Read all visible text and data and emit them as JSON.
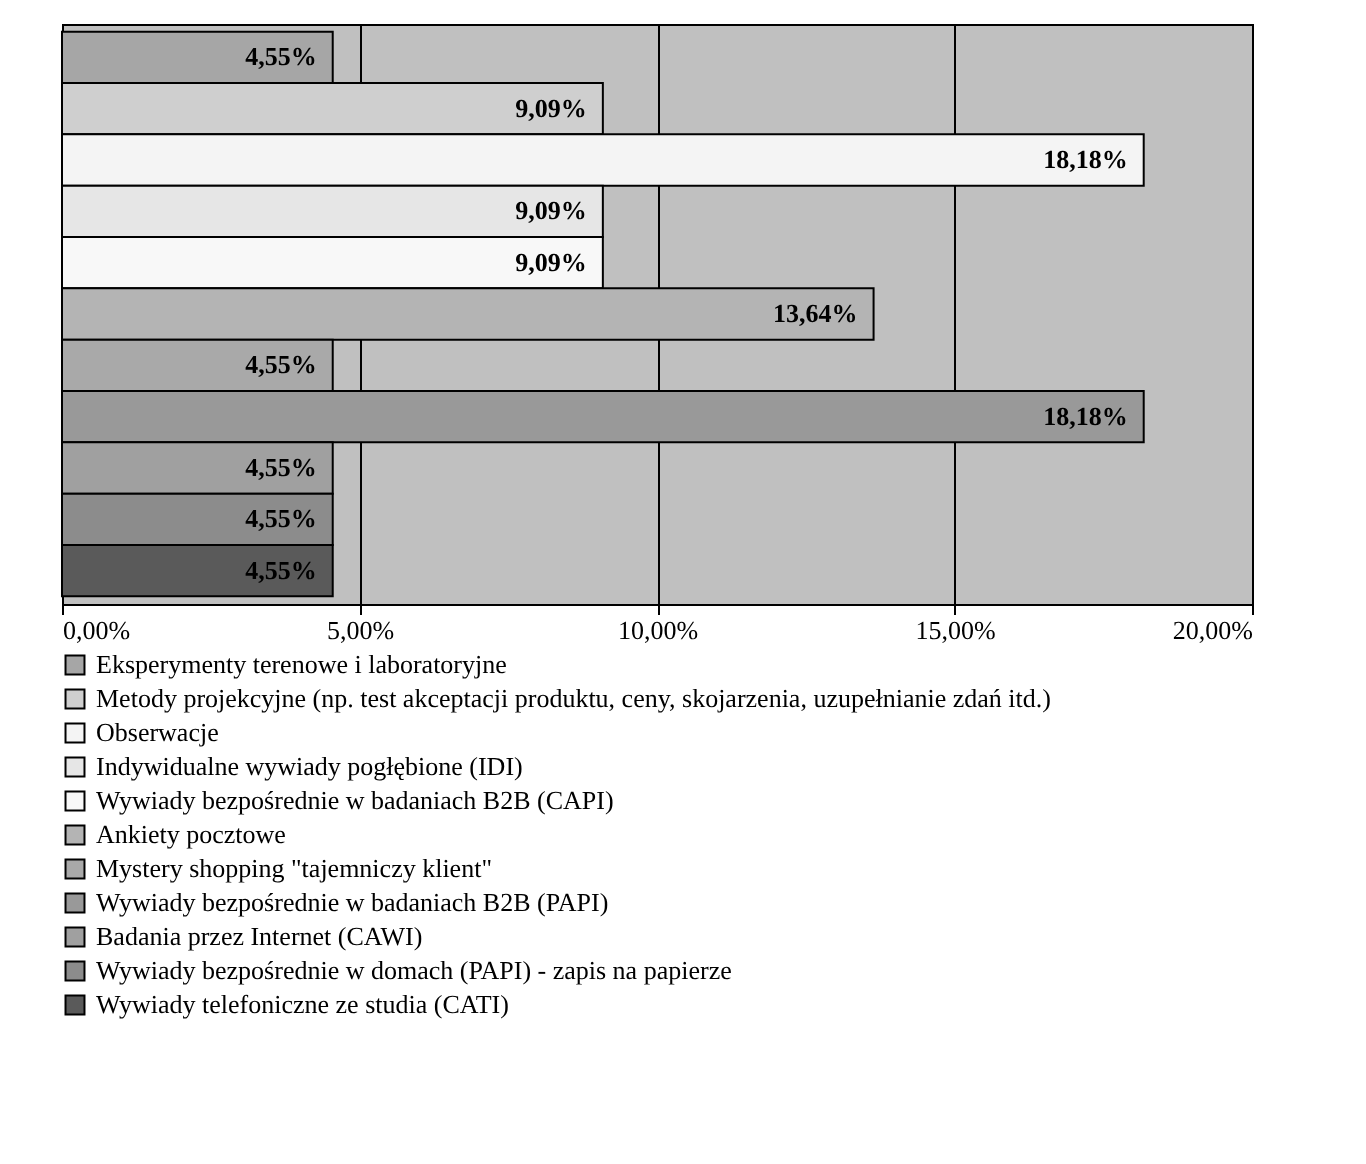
{
  "chart_data": {
    "type": "bar",
    "orientation": "horizontal",
    "categories": [
      null,
      null,
      null,
      null,
      null,
      null,
      null,
      null,
      null,
      null,
      null
    ],
    "series": [
      {
        "name": "Eksperymenty terenowe i laboratoryjne",
        "color": "#a6a6a6",
        "values": [
          4.55,
          null,
          null,
          null,
          null,
          null,
          null,
          null,
          null,
          null,
          null
        ],
        "value_labels": [
          "4,55%",
          null,
          null,
          null,
          null,
          null,
          null,
          null,
          null,
          null,
          null
        ]
      },
      {
        "name": "Metody projekcyjne (np. test akceptacji produktu, ceny, skojarzenia, uzupełnianie zdań itd.)",
        "color": "#cfcfcf",
        "values": [
          null,
          9.09,
          null,
          null,
          null,
          null,
          null,
          null,
          null,
          null,
          null
        ],
        "value_labels": [
          null,
          "9,09%",
          null,
          null,
          null,
          null,
          null,
          null,
          null,
          null,
          null
        ]
      },
      {
        "name": "Obserwacje",
        "color": "#f4f4f4",
        "values": [
          null,
          null,
          18.18,
          null,
          null,
          null,
          null,
          null,
          null,
          null,
          null
        ],
        "value_labels": [
          null,
          null,
          "18,18%",
          null,
          null,
          null,
          null,
          null,
          null,
          null,
          null
        ]
      },
      {
        "name": "Indywidualne wywiady pogłębione (IDI)",
        "color": "#e6e6e6",
        "values": [
          null,
          null,
          null,
          9.09,
          null,
          null,
          null,
          null,
          null,
          null,
          null
        ],
        "value_labels": [
          null,
          null,
          null,
          "9,09%",
          null,
          null,
          null,
          null,
          null,
          null,
          null
        ]
      },
      {
        "name": "Wywiady bezpośrednie w badaniach B2B (CAPI)",
        "color": "#f8f8f8",
        "values": [
          null,
          null,
          null,
          null,
          9.09,
          null,
          null,
          null,
          null,
          null,
          null
        ],
        "value_labels": [
          null,
          null,
          null,
          null,
          "9,09%",
          null,
          null,
          null,
          null,
          null,
          null
        ]
      },
      {
        "name": "Ankiety pocztowe",
        "color": "#b4b4b4",
        "values": [
          null,
          null,
          null,
          null,
          null,
          13.64,
          null,
          null,
          null,
          null,
          null
        ],
        "value_labels": [
          null,
          null,
          null,
          null,
          null,
          "13,64%",
          null,
          null,
          null,
          null,
          null
        ]
      },
      {
        "name": "Mystery shopping \"tajemniczy klient\"",
        "color": "#a9a9a9",
        "values": [
          null,
          null,
          null,
          null,
          null,
          null,
          4.55,
          null,
          null,
          null,
          null
        ],
        "value_labels": [
          null,
          null,
          null,
          null,
          null,
          null,
          "4,55%",
          null,
          null,
          null,
          null
        ]
      },
      {
        "name": "Wywiady bezpośrednie w badaniach B2B (PAPI)",
        "color": "#999999",
        "values": [
          null,
          null,
          null,
          null,
          null,
          null,
          null,
          18.18,
          null,
          null,
          null
        ],
        "value_labels": [
          null,
          null,
          null,
          null,
          null,
          null,
          null,
          "18,18%",
          null,
          null,
          null
        ]
      },
      {
        "name": "Badania przez Internet (CAWI)",
        "color": "#a0a0a0",
        "values": [
          null,
          null,
          null,
          null,
          null,
          null,
          null,
          null,
          4.55,
          null,
          null
        ],
        "value_labels": [
          null,
          null,
          null,
          null,
          null,
          null,
          null,
          null,
          "4,55%",
          null,
          null
        ]
      },
      {
        "name": "Wywiady bezpośrednie w domach (PAPI) - zapis na papierze",
        "color": "#8c8c8c",
        "values": [
          null,
          null,
          null,
          null,
          null,
          null,
          null,
          null,
          null,
          4.55,
          null
        ],
        "value_labels": [
          null,
          null,
          null,
          null,
          null,
          null,
          null,
          null,
          null,
          "4,55%",
          null
        ]
      },
      {
        "name": "Wywiady telefoniczne ze studia (CATI)",
        "color": "#5a5a5a",
        "values": [
          null,
          null,
          null,
          null,
          null,
          null,
          null,
          null,
          null,
          null,
          4.55
        ],
        "value_labels": [
          null,
          null,
          null,
          null,
          null,
          null,
          null,
          null,
          null,
          null,
          "4,55%"
        ]
      }
    ],
    "xlim": [
      0,
      20
    ],
    "xticks": [
      {
        "value": 0,
        "label": "0,00%"
      },
      {
        "value": 5,
        "label": "5,00%"
      },
      {
        "value": 10,
        "label": "10,00%"
      },
      {
        "value": 15,
        "label": "15,00%"
      },
      {
        "value": 20,
        "label": "20,00%"
      }
    ],
    "grid": "x",
    "legend": "bottom",
    "tick_labels": "x"
  }
}
